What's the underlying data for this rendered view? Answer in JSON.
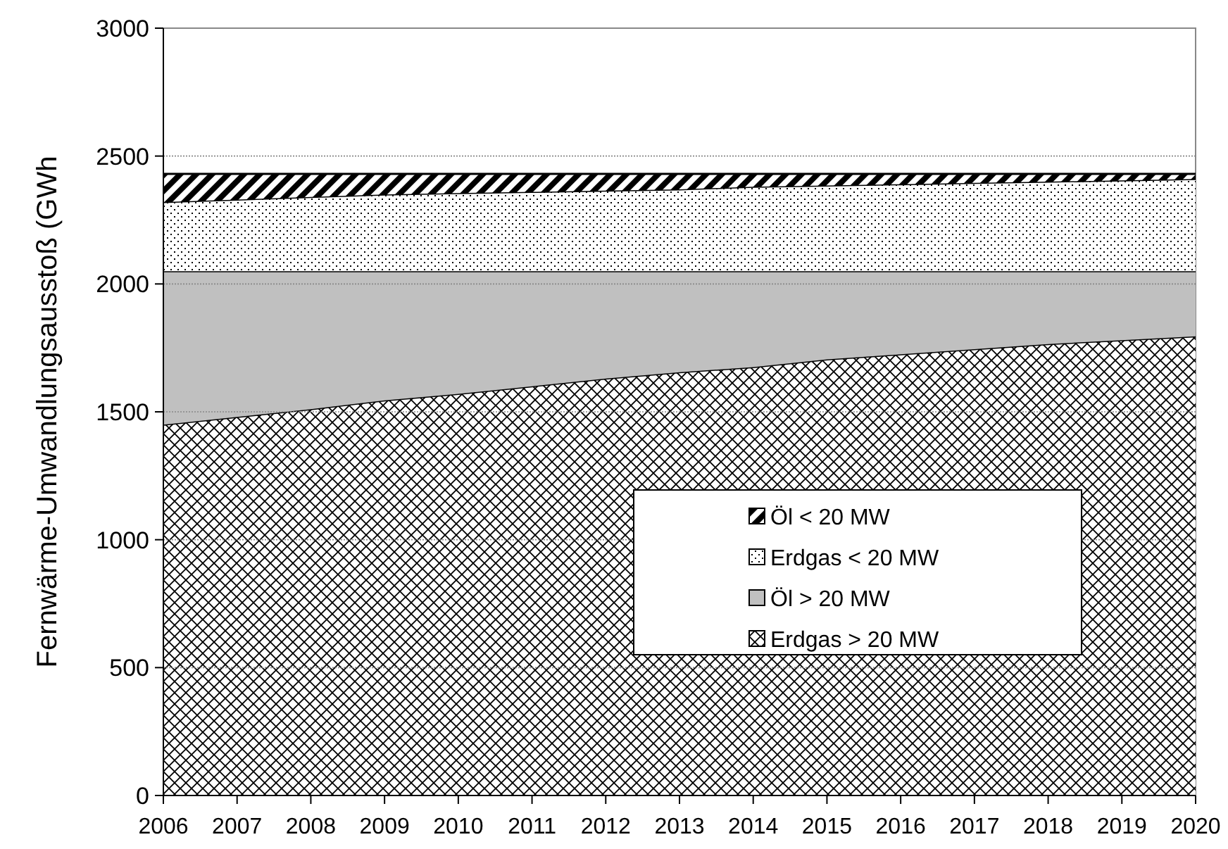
{
  "chart_data": {
    "type": "area",
    "stacked": true,
    "ylabel": "Fernwärme-Umwandlungsausstoß (GWh",
    "x": [
      2006,
      2007,
      2008,
      2009,
      2010,
      2011,
      2012,
      2013,
      2014,
      2015,
      2016,
      2017,
      2018,
      2019,
      2020
    ],
    "xlim": [
      2006,
      2020
    ],
    "xticks": [
      2006,
      2007,
      2008,
      2009,
      2010,
      2011,
      2012,
      2013,
      2014,
      2015,
      2016,
      2017,
      2018,
      2019,
      2020
    ],
    "ylim": [
      0,
      3000
    ],
    "yticks": [
      0,
      500,
      1000,
      1500,
      2000,
      2500,
      3000
    ],
    "grid": "y",
    "legend": "right",
    "series": [
      {
        "name": "Erdgas > 20 MW",
        "color": "#000000",
        "values": [
          1450,
          1480,
          1510,
          1545,
          1570,
          1600,
          1630,
          1655,
          1675,
          1705,
          1725,
          1745,
          1765,
          1780,
          1795
        ]
      },
      {
        "name": "Öl > 20 MW",
        "color": "#c0c0c0",
        "values": [
          600,
          570,
          540,
          505,
          480,
          450,
          420,
          395,
          375,
          345,
          325,
          305,
          285,
          270,
          255
        ]
      },
      {
        "name": "Erdgas < 20 MW",
        "color": "#000000",
        "values": [
          270,
          280,
          290,
          300,
          305,
          310,
          315,
          320,
          330,
          335,
          340,
          345,
          350,
          355,
          360
        ]
      },
      {
        "name": "Öl < 20 MW",
        "color": "#000000",
        "values": [
          110,
          100,
          90,
          80,
          75,
          70,
          65,
          60,
          50,
          45,
          40,
          35,
          30,
          25,
          20
        ]
      }
    ]
  }
}
